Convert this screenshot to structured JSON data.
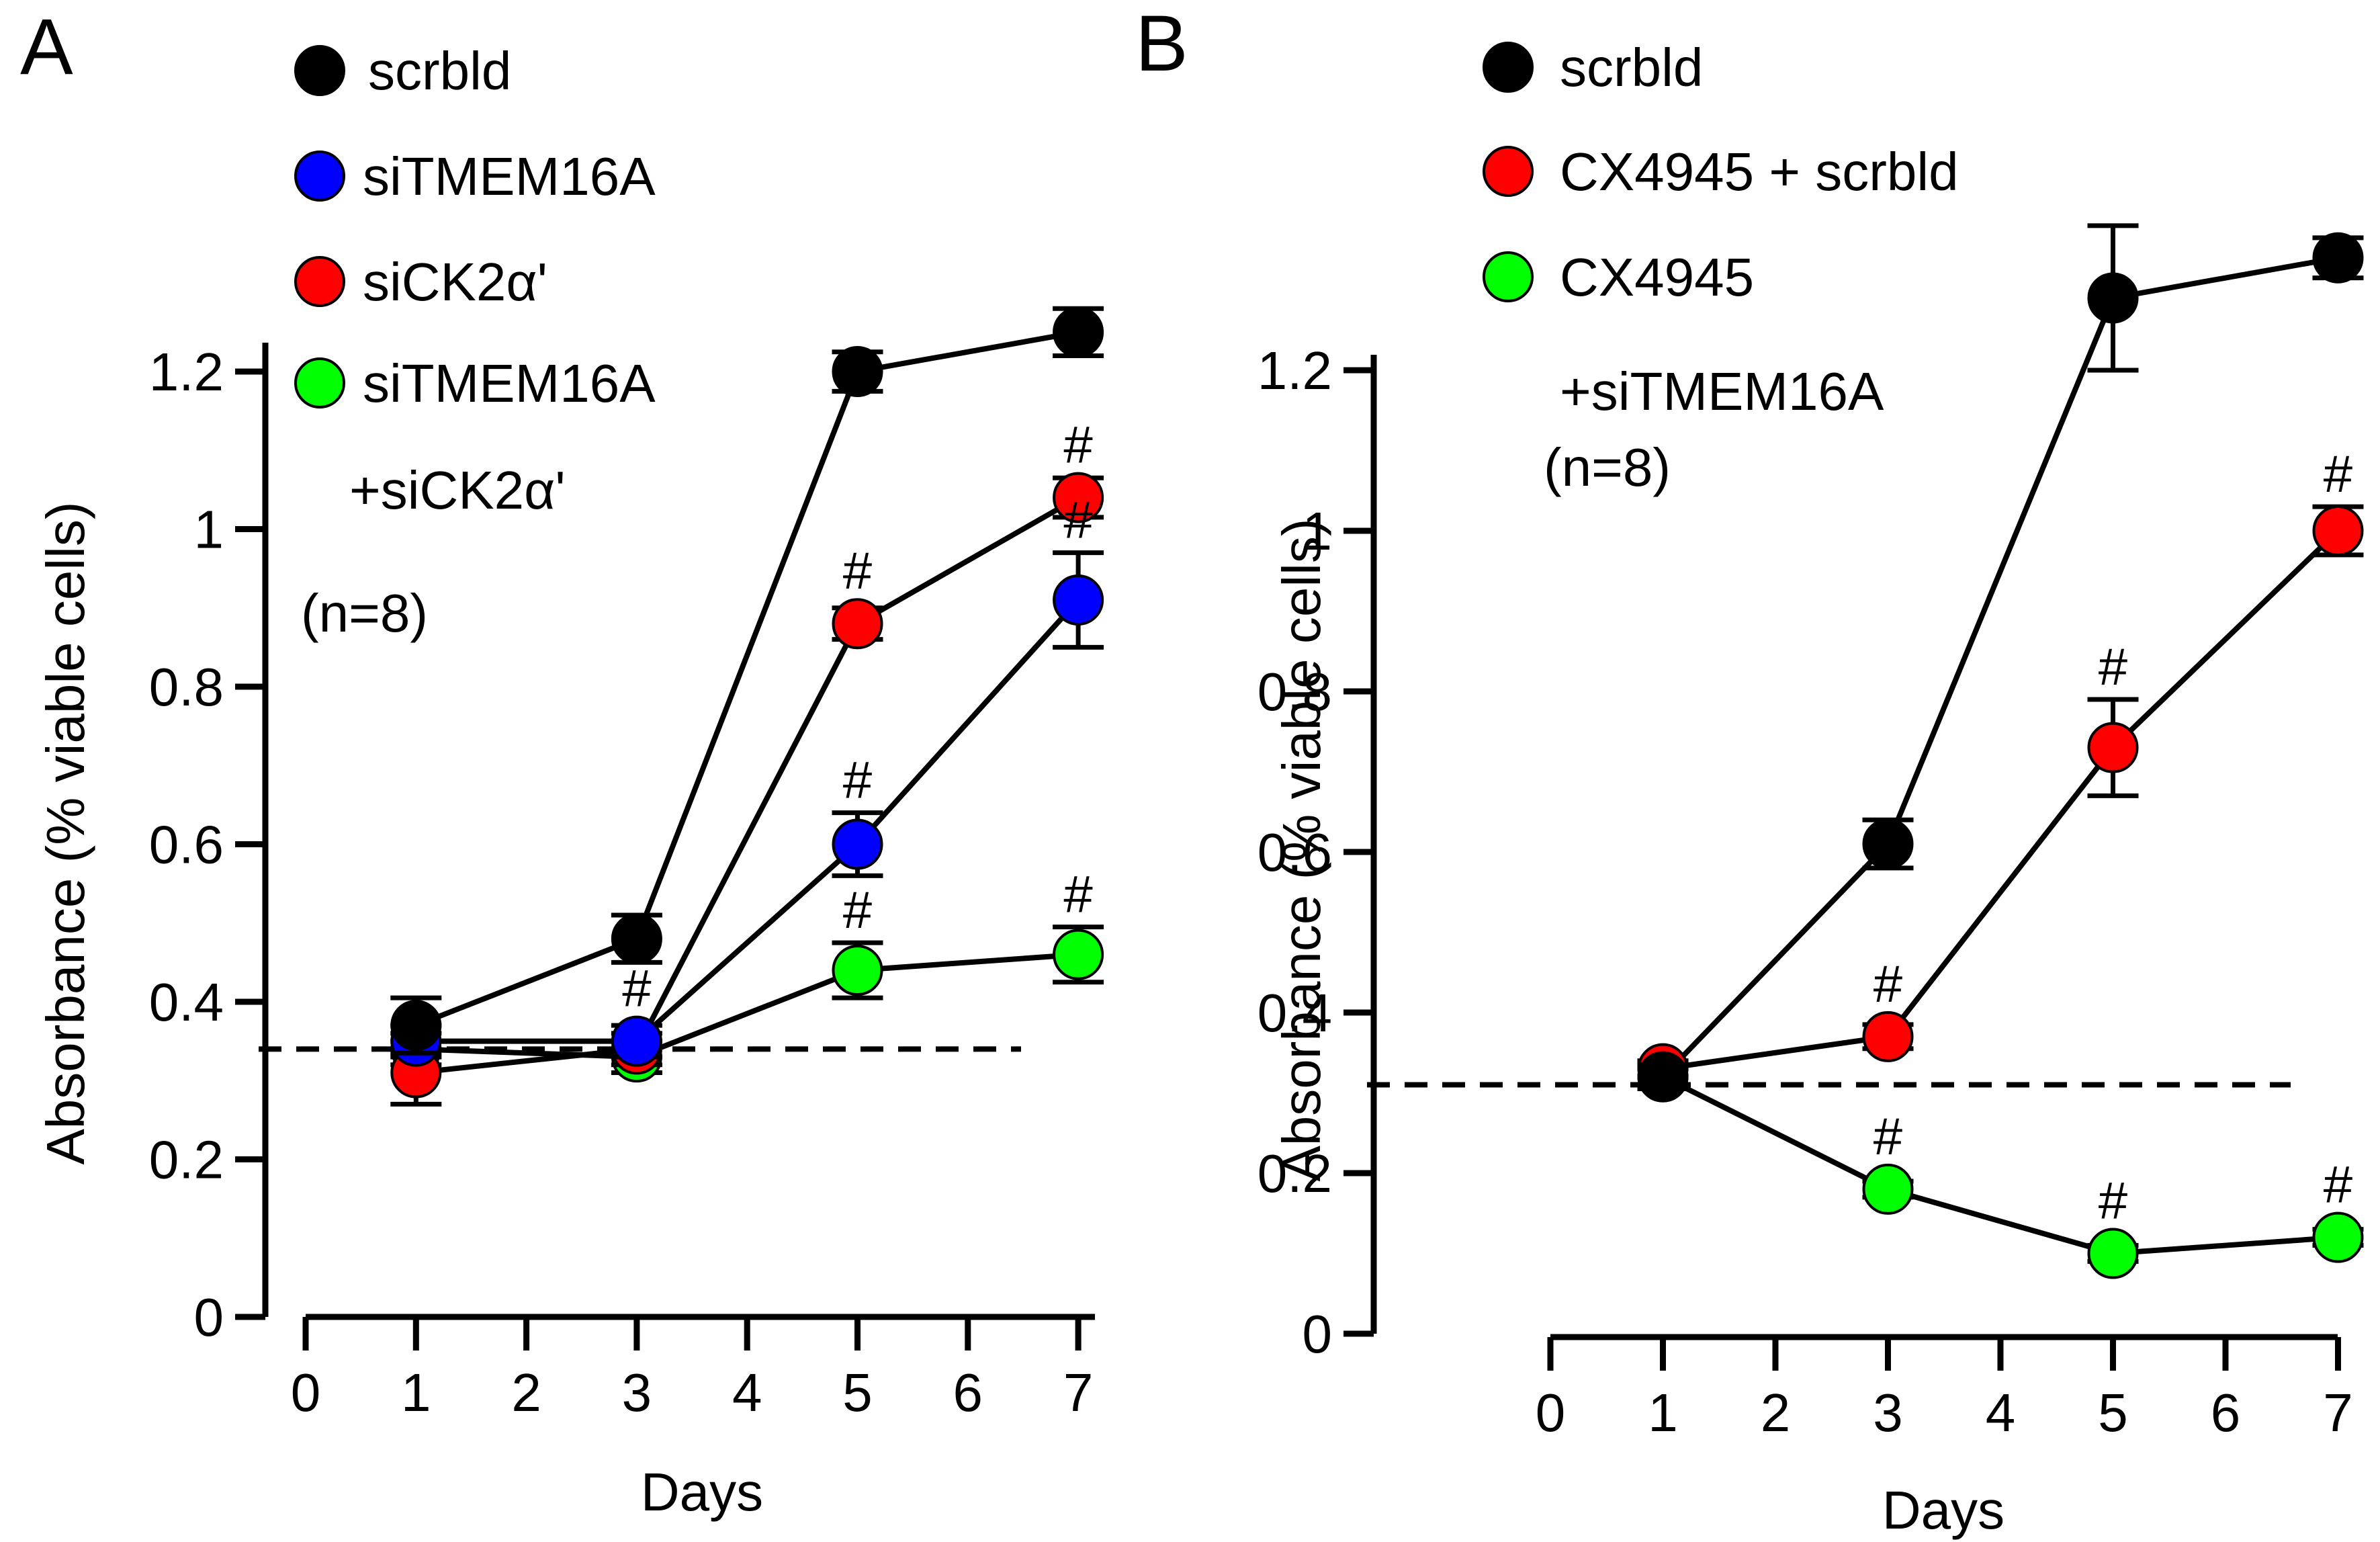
{
  "chart_data": [
    {
      "panel": "A",
      "type": "line",
      "xlabel": "Days",
      "ylabel": "Absorbance (% viable cells)",
      "xlim": [
        0,
        7
      ],
      "ylim": [
        0,
        1.2
      ],
      "xticks": [
        "0",
        "1",
        "2",
        "3",
        "4",
        "5",
        "6",
        "7"
      ],
      "yticks": [
        "0",
        "0.2",
        "0.4",
        "0.6",
        "0.8",
        "1",
        "1.2"
      ],
      "legend_position": "top-left",
      "legend": [
        {
          "label": "scrbld",
          "color": "#000000"
        },
        {
          "label": "siTMEM16A",
          "color": "#0000ff"
        },
        {
          "label": "siCK2α'",
          "color": "#ff0000"
        },
        {
          "label": "siTMEM16A",
          "color": "#00ff00"
        }
      ],
      "legend_continuation": "+siCK2α'",
      "note": "(n=8)",
      "baseline": 0.34,
      "series": [
        {
          "name": "scrbld",
          "color": "#000000",
          "x": [
            1,
            3,
            5,
            7
          ],
          "y": [
            0.37,
            0.48,
            1.2,
            1.25
          ],
          "err": [
            0.035,
            0.03,
            0.025,
            0.03
          ],
          "sig": [
            false,
            false,
            false,
            false
          ]
        },
        {
          "name": "siTMEM16A",
          "color": "#0000ff",
          "x": [
            1,
            3,
            5,
            7
          ],
          "y": [
            0.35,
            0.35,
            0.6,
            0.91
          ],
          "err": [
            0.02,
            0.02,
            0.04,
            0.06
          ],
          "sig": [
            false,
            true,
            true,
            true
          ]
        },
        {
          "name": "siCK2α'",
          "color": "#ff0000",
          "x": [
            1,
            3,
            5,
            7
          ],
          "y": [
            0.31,
            0.34,
            0.88,
            1.04
          ],
          "err": [
            0.04,
            0.02,
            0.02,
            0.025
          ],
          "sig": [
            false,
            false,
            true,
            true
          ]
        },
        {
          "name": "siTMEM16A +siCK2α'",
          "color": "#00ff00",
          "x": [
            1,
            3,
            5,
            7
          ],
          "y": [
            0.34,
            0.33,
            0.44,
            0.46
          ],
          "err": [
            0.02,
            0.02,
            0.035,
            0.035
          ],
          "sig": [
            false,
            false,
            true,
            true
          ]
        }
      ]
    },
    {
      "panel": "B",
      "type": "line",
      "xlabel": "Days",
      "ylabel": "Absorbance (% viable cells)",
      "xlim": [
        0,
        7
      ],
      "ylim": [
        0,
        1.2
      ],
      "xticks": [
        "0",
        "1",
        "2",
        "3",
        "4",
        "5",
        "6",
        "7"
      ],
      "yticks": [
        "0",
        "0.2",
        "0.4",
        "0.6",
        "0.8",
        "1",
        "1.2"
      ],
      "legend_position": "top-left",
      "legend": [
        {
          "label": "scrbld",
          "color": "#000000"
        },
        {
          "label": "CX4945 + scrbld",
          "color": "#ff0000"
        },
        {
          "label": "CX4945",
          "color": "#00ff00"
        }
      ],
      "legend_continuation": "+siTMEM16A",
      "note": "(n=8)",
      "baseline": 0.31,
      "series": [
        {
          "name": "scrbld",
          "color": "#000000",
          "x": [
            1,
            3,
            5,
            7
          ],
          "y": [
            0.32,
            0.61,
            1.29,
            1.34
          ],
          "err": [
            0.015,
            0.03,
            0.09,
            0.025
          ],
          "sig": [
            false,
            false,
            false,
            false
          ]
        },
        {
          "name": "CX4945 + scrbld",
          "color": "#ff0000",
          "x": [
            1,
            3,
            5,
            7
          ],
          "y": [
            0.33,
            0.37,
            0.73,
            1.0
          ],
          "err": [
            0.01,
            0.015,
            0.06,
            0.03
          ],
          "sig": [
            false,
            true,
            true,
            true
          ]
        },
        {
          "name": "CX4945 +siTMEM16A",
          "color": "#00ff00",
          "x": [
            1,
            3,
            5,
            7
          ],
          "y": [
            0.32,
            0.18,
            0.1,
            0.12
          ],
          "err": [
            0.01,
            0.01,
            0.01,
            0.01
          ],
          "sig": [
            false,
            true,
            true,
            true
          ]
        }
      ]
    }
  ],
  "significance_marker": "#"
}
